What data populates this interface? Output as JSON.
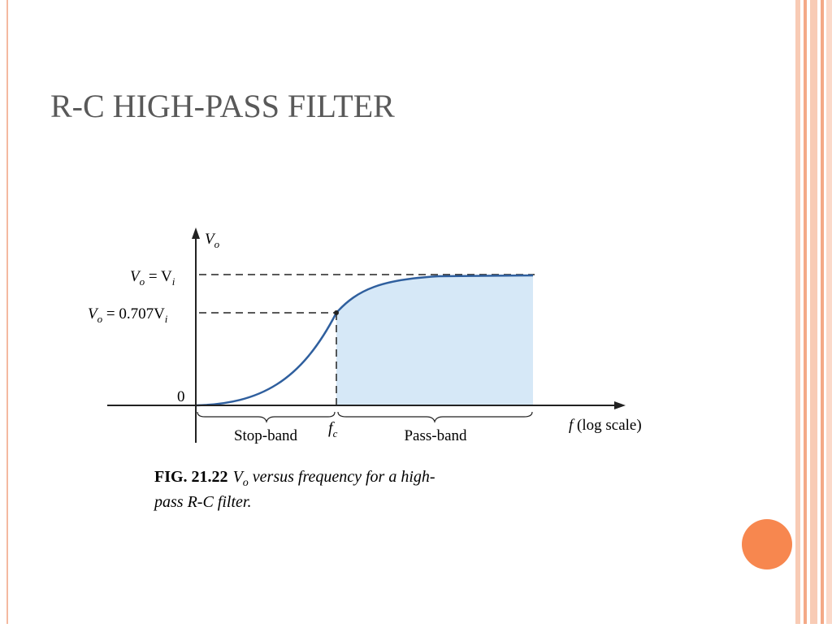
{
  "slide": {
    "title": "R-C HIGH-PASS FILTER"
  },
  "diagram": {
    "y_axis": {
      "symbol": "V",
      "sub": "o"
    },
    "level_vi": {
      "left": "V",
      "left_sub": "o",
      "mid": " = V",
      "right_sub": "i"
    },
    "level_0707": {
      "left": "V",
      "left_sub": "o",
      "mid": " = 0.707V",
      "right_sub": "i"
    },
    "zero": "0",
    "stop_band": "Stop-band",
    "cutoff": {
      "symbol": "f",
      "sub": "c"
    },
    "pass_band": "Pass-band",
    "x_axis": {
      "symbol": "f",
      "text": " (log scale)"
    }
  },
  "caption": {
    "label": "FIG. 21.22",
    "symbol": "V",
    "sub": "o",
    "line1": " versus frequency for a high-",
    "line2": "pass R-C filter."
  }
}
